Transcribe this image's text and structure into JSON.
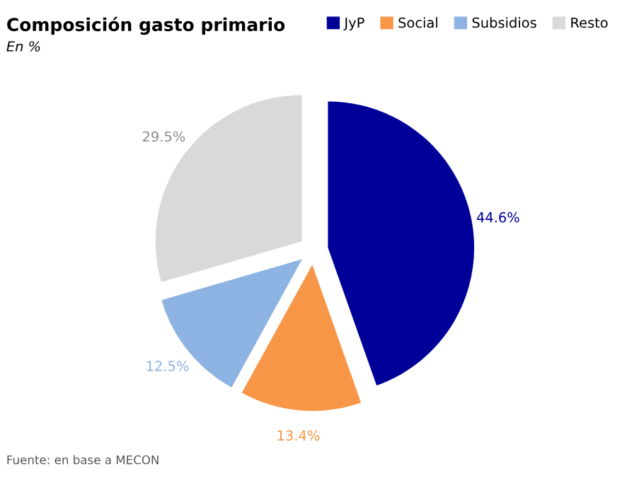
{
  "chart_data": {
    "type": "pie",
    "title": "Composición gasto primario",
    "subtitle": "En %",
    "categories": [
      "JyP",
      "Social",
      "Subsidios",
      "Resto"
    ],
    "values": [
      44.6,
      13.4,
      12.5,
      29.5
    ],
    "colors": [
      "#000099",
      "#f79646",
      "#8db3e2",
      "#d9d9d9"
    ],
    "value_labels": [
      "44.6%",
      "13.4%",
      "12.5%",
      "29.5%"
    ],
    "legend": "top right",
    "annotations": [
      "Fuente: en base a MECON"
    ]
  }
}
